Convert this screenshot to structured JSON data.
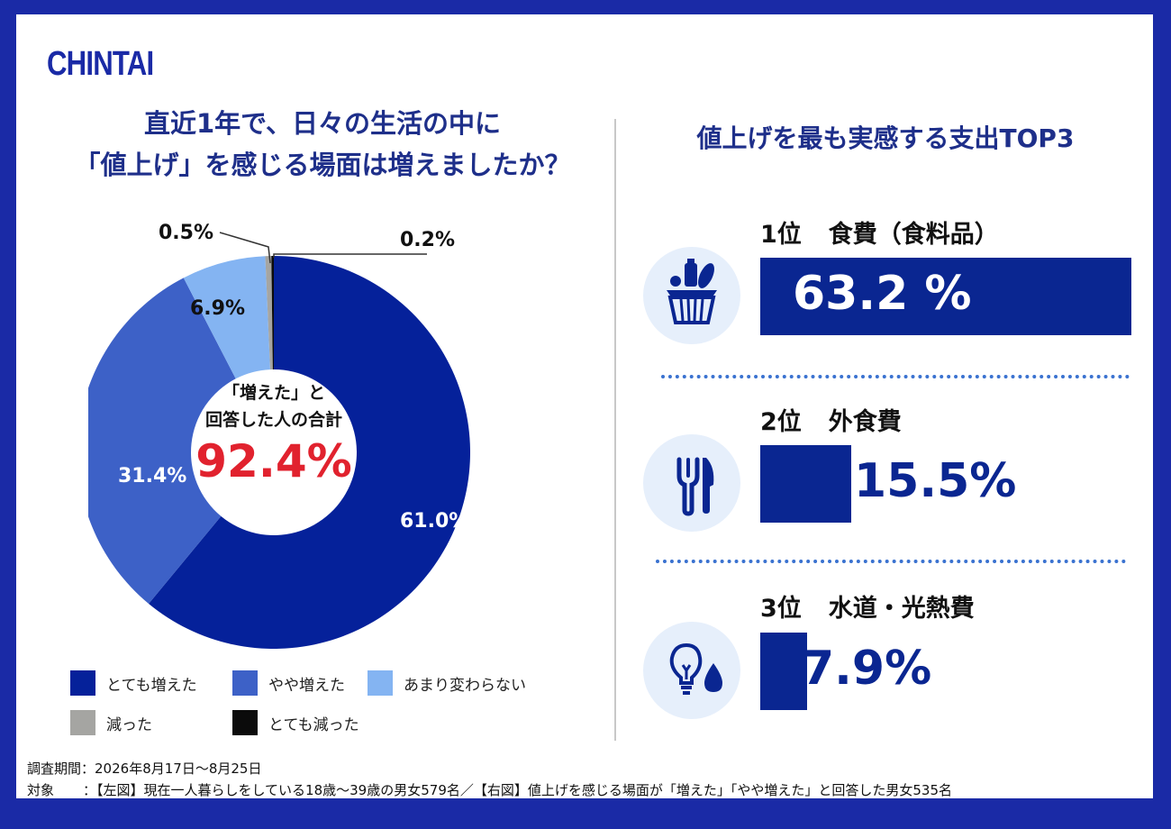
{
  "logo": "CHINTAI",
  "left_title_line1": "直近1年で、日々の生活の中に",
  "left_title_line2": "「値上げ」を感じる場面は増えましたか？",
  "right_title": "値上げを最も実感する支出TOP3",
  "center_text_line1": "「増えた」と",
  "center_text_line2": "回答した人の合計",
  "center_value": "92.4%",
  "colors": {
    "very_increased": "#05219a",
    "somewhat_increased": "#3d61c7",
    "no_change": "#84b4f2",
    "decreased": "#a5a5a2",
    "very_decreased": "#0b0b0b",
    "accent_red": "#e1222e",
    "brand": "#1a2aa6"
  },
  "chart_data": [
    {
      "type": "pie",
      "categories": [
        "とても増えた",
        "やや増えた",
        "あまり変わらない",
        "減った",
        "とても減った"
      ],
      "values": [
        61.0,
        31.4,
        6.9,
        0.5,
        0.2
      ],
      "labels": [
        "61.0%",
        "31.4%",
        "6.9%",
        "0.5%",
        "0.2%"
      ],
      "title": "",
      "legend_position": "bottom"
    },
    {
      "type": "bar",
      "categories": [
        "食費（食料品）",
        "外食費",
        "水道・光熱費"
      ],
      "values": [
        63.2,
        15.5,
        7.9
      ],
      "value_labels": [
        "63.2 %",
        "15.5%",
        "7.9%"
      ],
      "ranks": [
        "1位",
        "2位",
        "3位"
      ],
      "icons": [
        "grocery-basket-icon",
        "fork-knife-icon",
        "lightbulb-water-drop-icon"
      ],
      "orientation": "horizontal"
    }
  ],
  "footer": {
    "period_label": "調査期間：",
    "period_value": "2026年8月17日〜8月25日",
    "target_label": "対象",
    "target_value": "：【左図】現在一人暮らしをしている18歳〜39歳の男女579名／【右図】値上げを感じる場面が「増えた」「やや増えた」と回答した男女535名"
  }
}
